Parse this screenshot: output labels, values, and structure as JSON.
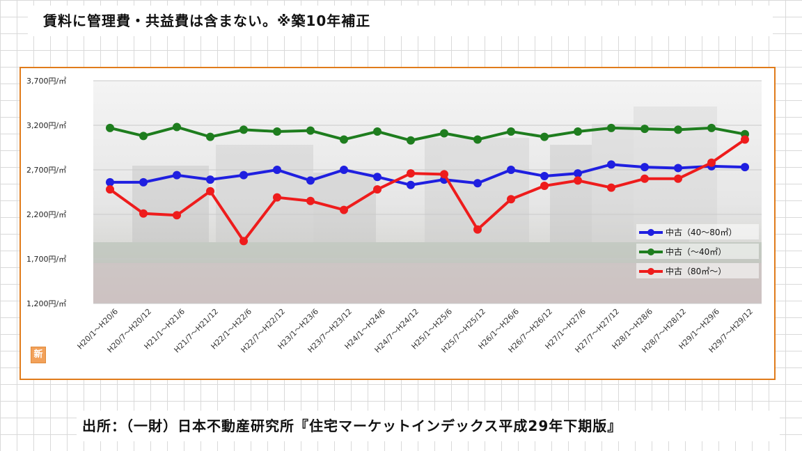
{
  "header": {
    "note": "賃料に管理費・共益費は含まない。※築10年補正"
  },
  "footer": {
    "source": "出所：（一財）日本不動産研究所『住宅マーケットインデックス平成29年下期版』"
  },
  "logo": {
    "text": "新"
  },
  "colors": {
    "frame": "#e07b1a",
    "blue": "#1f1fe0",
    "green": "#1e7d1e",
    "red": "#ee1c1c"
  },
  "chart_data": {
    "type": "line",
    "ylim": [
      1200,
      3700
    ],
    "yticks": [
      {
        "value": 3700,
        "label": "3,700円/㎡"
      },
      {
        "value": 3200,
        "label": "3,200円/㎡"
      },
      {
        "value": 2700,
        "label": "2,700円/㎡"
      },
      {
        "value": 2200,
        "label": "2,200円/㎡"
      },
      {
        "value": 1700,
        "label": "1,700円/㎡"
      },
      {
        "value": 1200,
        "label": "1,200円/㎡"
      }
    ],
    "categories": [
      "H20/1～H20/6",
      "H20/7～H20/12",
      "H21/1～H21/6",
      "H21/7～H21/12",
      "H22/1～H22/6",
      "H22/7～H22/12",
      "H23/1～H23/6",
      "H23/7～H23/12",
      "H24/1～H24/6",
      "H24/7～H24/12",
      "H25/1～H25/6",
      "H25/7～H25/12",
      "H26/1～H26/6",
      "H26/7～H26/12",
      "H27/1～H27/6",
      "H27/7～H27/12",
      "H28/1～H28/6",
      "H28/7～H28/12",
      "H29/1～H29/6",
      "H29/7～H29/12"
    ],
    "series": [
      {
        "name": "中古（40～80㎡）",
        "color": "#1f1fe0",
        "values": [
          2560,
          2560,
          2640,
          2590,
          2640,
          2700,
          2580,
          2700,
          2620,
          2530,
          2590,
          2550,
          2700,
          2630,
          2660,
          2760,
          2730,
          2720,
          2740,
          2730
        ]
      },
      {
        "name": "中古（～40㎡）",
        "color": "#1e7d1e",
        "values": [
          3170,
          3080,
          3180,
          3070,
          3150,
          3130,
          3140,
          3040,
          3130,
          3030,
          3110,
          3040,
          3130,
          3070,
          3130,
          3170,
          3160,
          3150,
          3170,
          3100
        ]
      },
      {
        "name": "中古（80㎡～）",
        "color": "#ee1c1c",
        "values": [
          2480,
          2210,
          2190,
          2460,
          1900,
          2390,
          2350,
          2250,
          2480,
          2660,
          2650,
          2030,
          2370,
          2520,
          2580,
          2500,
          2600,
          2600,
          2780,
          3040
        ]
      }
    ],
    "legend_position": "right",
    "grid": true
  }
}
